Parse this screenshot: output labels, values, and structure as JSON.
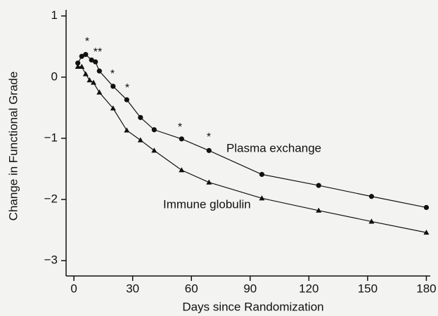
{
  "chart_data": {
    "type": "line",
    "xlabel": "Days since Randomization",
    "ylabel": "Change in Functional Grade",
    "xlim": [
      -4,
      182
    ],
    "ylim": [
      -3.25,
      1.1
    ],
    "xticks": [
      0,
      30,
      60,
      90,
      120,
      150,
      180
    ],
    "yticks": [
      1,
      0,
      {
        "value": -1,
        "label": "−1"
      },
      {
        "value": -2,
        "label": "−2"
      },
      {
        "value": -3,
        "label": "−3"
      }
    ],
    "series": [
      {
        "name": "Plasma exchange",
        "color": "#111111",
        "marker": "circle",
        "x": [
          2,
          4,
          6,
          9,
          11,
          13,
          20,
          27,
          34,
          41,
          55,
          69,
          96,
          125,
          152,
          180
        ],
        "values": [
          0.23,
          0.34,
          0.37,
          0.28,
          0.25,
          0.1,
          -0.15,
          -0.37,
          -0.66,
          -0.86,
          -1.01,
          -1.2,
          -1.59,
          -1.77,
          -1.95,
          -2.13
        ]
      },
      {
        "name": "Immune globulin",
        "color": "#111111",
        "marker": "triangle",
        "x": [
          2,
          4,
          6,
          8,
          10,
          13,
          20,
          27,
          34,
          41,
          55,
          69,
          96,
          125,
          152,
          180
        ],
        "values": [
          0.17,
          0.17,
          0.05,
          -0.05,
          -0.09,
          -0.25,
          -0.51,
          -0.87,
          -1.03,
          -1.2,
          -1.52,
          -1.72,
          -1.98,
          -2.18,
          -2.36,
          -2.54
        ]
      }
    ],
    "annotations": [
      "*",
      "**",
      "*",
      "*",
      "*",
      "*"
    ]
  }
}
